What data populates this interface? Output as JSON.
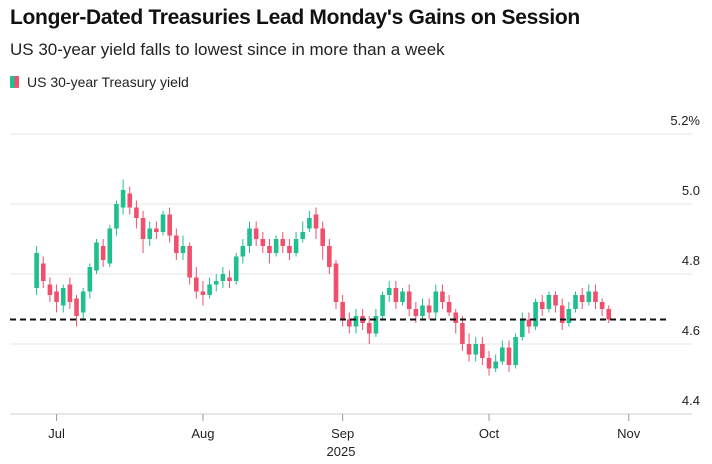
{
  "title": "Longer-Dated Treasuries Lead Monday's Gains on Session",
  "subtitle": "US 30-year yield falls to lowest since in more than a week",
  "legend": {
    "label": "US 30-year Treasury yield",
    "up_color": "#1fbf8f",
    "down_color": "#f0506e"
  },
  "chart_data": {
    "type": "candlestick",
    "title": "Longer-Dated Treasuries Lead Monday's Gains on Session",
    "subtitle": "US 30-year yield falls to lowest since in more than a week",
    "series_name": "US 30-year Treasury yield",
    "ylim": [
      4.4,
      5.2
    ],
    "yticks": [
      4.4,
      4.6,
      4.8,
      5.0,
      5.2
    ],
    "ytick_labels": [
      "4.4",
      "4.6",
      "4.8",
      "5.0",
      "5.2%"
    ],
    "x_range": [
      -4,
      94
    ],
    "xticks": [
      {
        "label": "Jul",
        "index": 3
      },
      {
        "label": "Aug",
        "index": 25
      },
      {
        "label": "Sep",
        "index": 46
      },
      {
        "label": "Oct",
        "index": 68
      },
      {
        "label": "Nov",
        "index": 89
      }
    ],
    "x_year_label": "2025",
    "reference_line": {
      "value": 4.67,
      "style": "dashed"
    },
    "candles": [
      [
        4.76,
        4.86,
        4.74,
        4.88
      ],
      [
        4.83,
        4.78,
        4.76,
        4.85
      ],
      [
        4.77,
        4.74,
        4.72,
        4.79
      ],
      [
        4.75,
        4.72,
        4.69,
        4.77
      ],
      [
        4.71,
        4.76,
        4.69,
        4.77
      ],
      [
        4.77,
        4.72,
        4.7,
        4.79
      ],
      [
        4.73,
        4.68,
        4.65,
        4.74
      ],
      [
        4.69,
        4.75,
        4.67,
        4.76
      ],
      [
        4.75,
        4.82,
        4.73,
        4.83
      ],
      [
        4.81,
        4.89,
        4.8,
        4.9
      ],
      [
        4.88,
        4.84,
        4.82,
        4.9
      ],
      [
        4.83,
        4.93,
        4.82,
        4.94
      ],
      [
        4.93,
        5.0,
        4.91,
        5.01
      ],
      [
        4.99,
        5.04,
        4.97,
        5.07
      ],
      [
        5.03,
        4.99,
        4.97,
        5.05
      ],
      [
        4.99,
        4.96,
        4.93,
        5.01
      ],
      [
        4.96,
        4.9,
        4.86,
        4.98
      ],
      [
        4.9,
        4.93,
        4.88,
        4.95
      ],
      [
        4.93,
        4.92,
        4.9,
        4.95
      ],
      [
        4.92,
        4.97,
        4.91,
        4.98
      ],
      [
        4.97,
        4.91,
        4.89,
        4.99
      ],
      [
        4.91,
        4.86,
        4.84,
        4.93
      ],
      [
        4.86,
        4.88,
        4.84,
        4.91
      ],
      [
        4.88,
        4.79,
        4.77,
        4.89
      ],
      [
        4.79,
        4.75,
        4.73,
        4.82
      ],
      [
        4.75,
        4.74,
        4.71,
        4.78
      ],
      [
        4.74,
        4.77,
        4.73,
        4.79
      ],
      [
        4.77,
        4.78,
        4.75,
        4.8
      ],
      [
        4.78,
        4.8,
        4.76,
        4.82
      ],
      [
        4.79,
        4.78,
        4.76,
        4.81
      ],
      [
        4.78,
        4.85,
        4.77,
        4.86
      ],
      [
        4.85,
        4.88,
        4.83,
        4.9
      ],
      [
        4.88,
        4.93,
        4.86,
        4.95
      ],
      [
        4.93,
        4.9,
        4.88,
        4.95
      ],
      [
        4.9,
        4.88,
        4.86,
        4.92
      ],
      [
        4.88,
        4.86,
        4.83,
        4.9
      ],
      [
        4.86,
        4.9,
        4.85,
        4.91
      ],
      [
        4.9,
        4.88,
        4.86,
        4.92
      ],
      [
        4.88,
        4.86,
        4.84,
        4.9
      ],
      [
        4.86,
        4.9,
        4.85,
        4.92
      ],
      [
        4.9,
        4.92,
        4.89,
        4.95
      ],
      [
        4.93,
        4.96,
        4.92,
        4.98
      ],
      [
        4.97,
        4.93,
        4.9,
        4.99
      ],
      [
        4.93,
        4.88,
        4.84,
        4.95
      ],
      [
        4.88,
        4.82,
        4.8,
        4.9
      ],
      [
        4.83,
        4.72,
        4.7,
        4.84
      ],
      [
        4.72,
        4.67,
        4.65,
        4.74
      ],
      [
        4.67,
        4.65,
        4.63,
        4.69
      ],
      [
        4.65,
        4.68,
        4.63,
        4.7
      ],
      [
        4.68,
        4.66,
        4.64,
        4.7
      ],
      [
        4.66,
        4.63,
        4.6,
        4.68
      ],
      [
        4.63,
        4.68,
        4.62,
        4.7
      ],
      [
        4.68,
        4.74,
        4.67,
        4.75
      ],
      [
        4.74,
        4.76,
        4.72,
        4.78
      ],
      [
        4.76,
        4.72,
        4.7,
        4.78
      ],
      [
        4.72,
        4.75,
        4.71,
        4.76
      ],
      [
        4.75,
        4.7,
        4.68,
        4.77
      ],
      [
        4.7,
        4.68,
        4.66,
        4.72
      ],
      [
        4.68,
        4.71,
        4.67,
        4.73
      ],
      [
        4.71,
        4.69,
        4.67,
        4.73
      ],
      [
        4.69,
        4.75,
        4.67,
        4.77
      ],
      [
        4.75,
        4.72,
        4.7,
        4.77
      ],
      [
        4.72,
        4.69,
        4.68,
        4.74
      ],
      [
        4.69,
        4.66,
        4.63,
        4.7
      ],
      [
        4.66,
        4.6,
        4.58,
        4.68
      ],
      [
        4.6,
        4.57,
        4.55,
        4.63
      ],
      [
        4.57,
        4.6,
        4.55,
        4.62
      ],
      [
        4.6,
        4.56,
        4.54,
        4.62
      ],
      [
        4.56,
        4.53,
        4.51,
        4.58
      ],
      [
        4.53,
        4.55,
        4.52,
        4.57
      ],
      [
        4.55,
        4.59,
        4.54,
        4.61
      ],
      [
        4.59,
        4.54,
        4.52,
        4.61
      ],
      [
        4.54,
        4.62,
        4.53,
        4.63
      ],
      [
        4.62,
        4.67,
        4.61,
        4.69
      ],
      [
        4.67,
        4.65,
        4.63,
        4.69
      ],
      [
        4.65,
        4.72,
        4.64,
        4.73
      ],
      [
        4.72,
        4.7,
        4.68,
        4.74
      ],
      [
        4.7,
        4.74,
        4.69,
        4.75
      ],
      [
        4.74,
        4.71,
        4.69,
        4.75
      ],
      [
        4.71,
        4.66,
        4.64,
        4.73
      ],
      [
        4.66,
        4.7,
        4.65,
        4.72
      ],
      [
        4.7,
        4.74,
        4.69,
        4.75
      ],
      [
        4.74,
        4.72,
        4.7,
        4.76
      ],
      [
        4.72,
        4.75,
        4.71,
        4.77
      ],
      [
        4.75,
        4.72,
        4.7,
        4.77
      ],
      [
        4.72,
        4.7,
        4.68,
        4.73
      ],
      [
        4.7,
        4.67,
        4.66,
        4.71
      ]
    ]
  }
}
